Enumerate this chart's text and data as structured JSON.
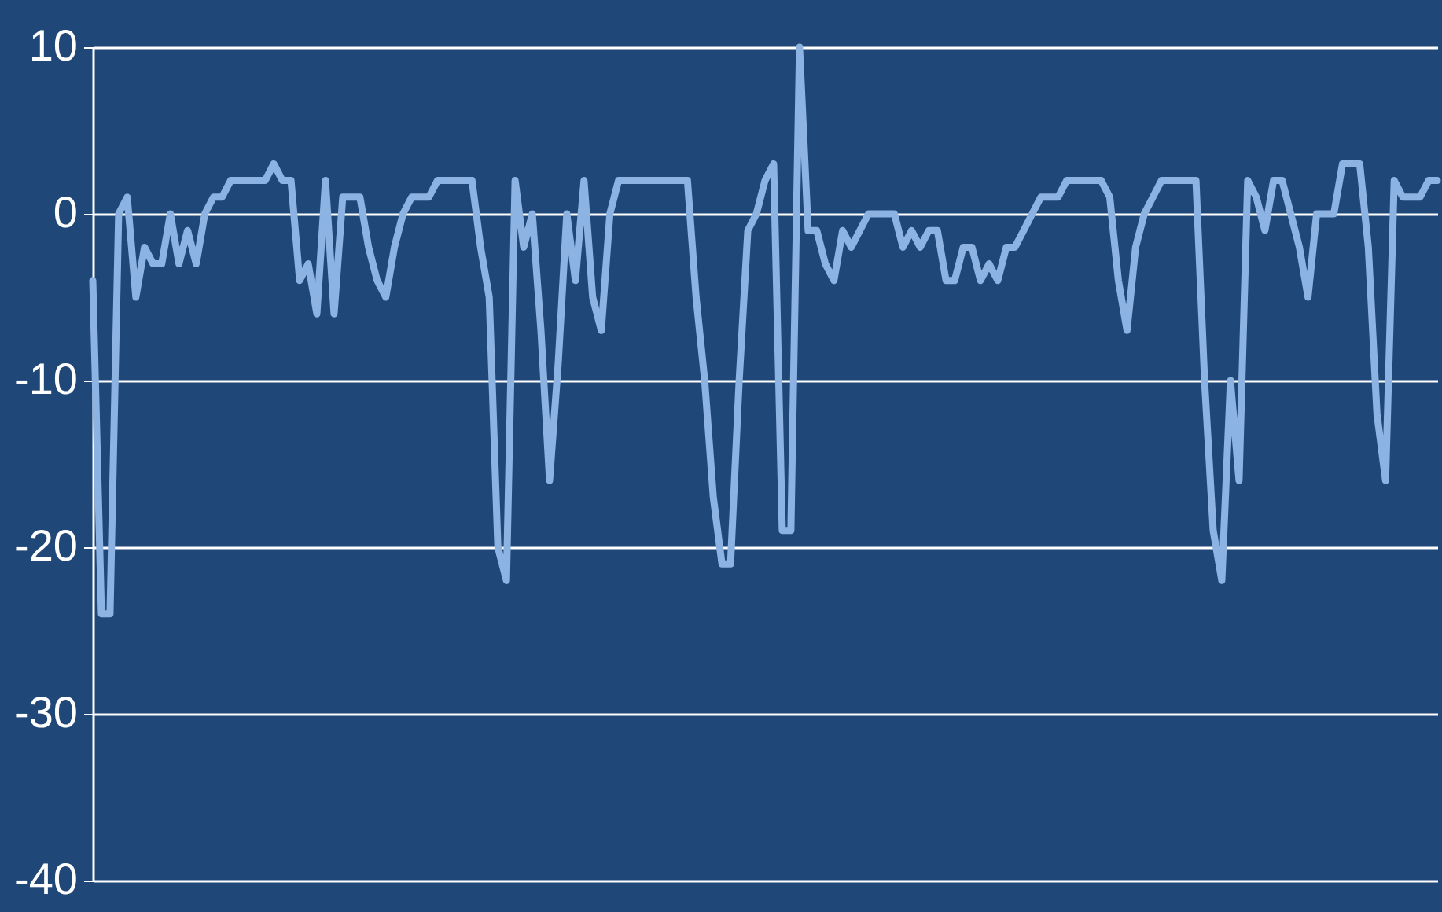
{
  "chart_data": {
    "type": "line",
    "categories": [
      null,
      null,
      null,
      null,
      null,
      null,
      null,
      null,
      null,
      null,
      null,
      null,
      null,
      null,
      null,
      null,
      null,
      null,
      null,
      null,
      null,
      null,
      null,
      null,
      null,
      null,
      null,
      null,
      null,
      null,
      null,
      null,
      null,
      null,
      null,
      null,
      null,
      null,
      null,
      null,
      null,
      null,
      null,
      null,
      null,
      null,
      null,
      null,
      null,
      null,
      null,
      null,
      null,
      null,
      null,
      null,
      null,
      null,
      null,
      null,
      null,
      null,
      null,
      null,
      null,
      null,
      null,
      null,
      null,
      null,
      null,
      null,
      null,
      null,
      null,
      null,
      null,
      null,
      null,
      null,
      null,
      null,
      null,
      null,
      null,
      null,
      null,
      null,
      null,
      null,
      null,
      null,
      null,
      null,
      null,
      null,
      null,
      null,
      null,
      null,
      null,
      null,
      null,
      null,
      null,
      null,
      null,
      null,
      null,
      null,
      null,
      null,
      null,
      null,
      null,
      null,
      null,
      null,
      null,
      null,
      null,
      null,
      null,
      null,
      null,
      null,
      null,
      null,
      null,
      null,
      null,
      null,
      null,
      null,
      null,
      null,
      null,
      null,
      null,
      null,
      null,
      null,
      null,
      null,
      null,
      null,
      null,
      null,
      null,
      null,
      null,
      null,
      null,
      null,
      null,
      null,
      null
    ],
    "series": [
      {
        "color": "#8db3e2",
        "values": [
          -4,
          -24,
          -24,
          0,
          1,
          -5,
          -2,
          -3,
          -3,
          0,
          -3,
          -1,
          -3,
          0,
          1,
          1,
          2,
          2,
          2,
          2,
          2,
          3,
          2,
          2,
          -4,
          -3,
          -6,
          2,
          -6,
          1,
          1,
          1,
          -2,
          -4,
          -5,
          -2,
          0,
          1,
          1,
          1,
          2,
          2,
          2,
          2,
          2,
          -2,
          -5,
          -20,
          -22,
          2,
          -2,
          0,
          -7,
          -16,
          -9,
          0,
          -4,
          2,
          -5,
          -7,
          0,
          2,
          2,
          2,
          2,
          2,
          2,
          2,
          2,
          2,
          -5,
          -10,
          -17,
          -21,
          -21,
          -10,
          -1,
          0,
          2,
          3,
          -19,
          -19,
          10,
          -1,
          -1,
          -3,
          -4,
          -1,
          -2,
          -1,
          0,
          0,
          0,
          0,
          -2,
          -1,
          -2,
          -1,
          -1,
          -4,
          -4,
          -2,
          -2,
          -4,
          -3,
          -4,
          -2,
          -2,
          -1,
          0,
          1,
          1,
          1,
          2,
          2,
          2,
          2,
          2,
          1,
          -4,
          -7,
          -2,
          0,
          1,
          2,
          2,
          2,
          2,
          2,
          -10,
          -19,
          -22,
          -10,
          -16,
          2,
          1,
          -1,
          2,
          2,
          0,
          -2,
          -5,
          0,
          0,
          0,
          3,
          3,
          3,
          -2,
          -12,
          -16,
          2,
          1,
          1,
          1,
          2,
          2
        ]
      }
    ],
    "ylim": [
      -40,
      10
    ],
    "yticks": [
      -40,
      -30,
      -20,
      -10,
      0,
      10
    ],
    "grid": "y",
    "tick_labels": "y",
    "line_style": "solid",
    "marker": "none"
  }
}
